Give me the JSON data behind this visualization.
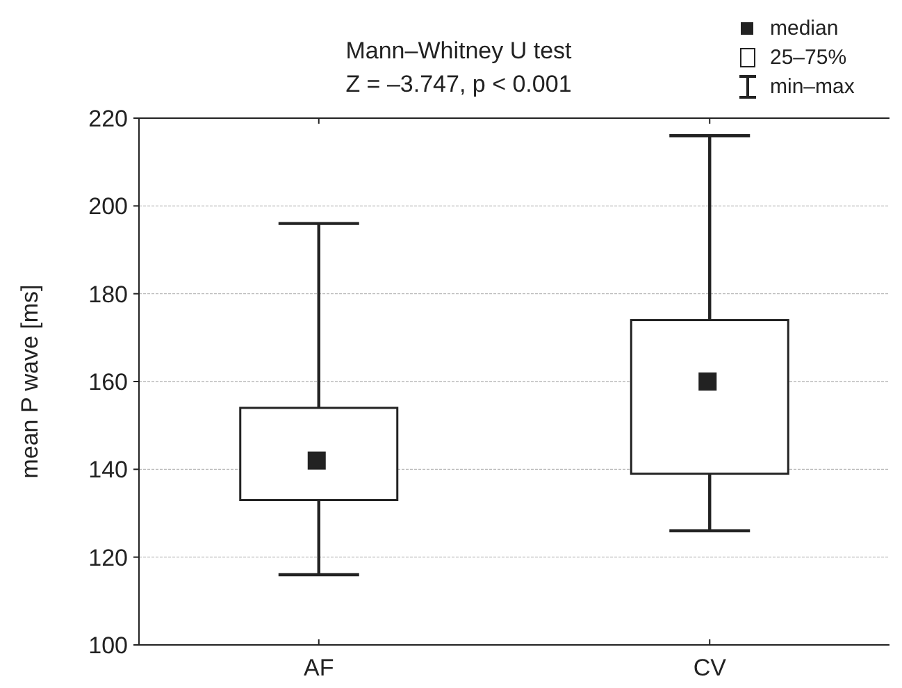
{
  "chart_data": {
    "type": "box",
    "title": "Mann–Whitney U test",
    "subtitle": "Z = –3.747,  p < 0.001",
    "ylabel": "mean P wave [ms]",
    "categories": [
      "AF",
      "CV"
    ],
    "boxes": [
      {
        "low": 116,
        "q1": 133,
        "median": 142,
        "q3": 154,
        "high": 196
      },
      {
        "low": 126,
        "q1": 139,
        "median": 160,
        "q3": 174,
        "high": 216
      }
    ],
    "ylim": [
      100,
      220
    ],
    "yticks": [
      100,
      120,
      140,
      160,
      180,
      200,
      220
    ],
    "grid": "y",
    "annotations": [
      "median",
      "25–75%",
      "min–max"
    ]
  }
}
